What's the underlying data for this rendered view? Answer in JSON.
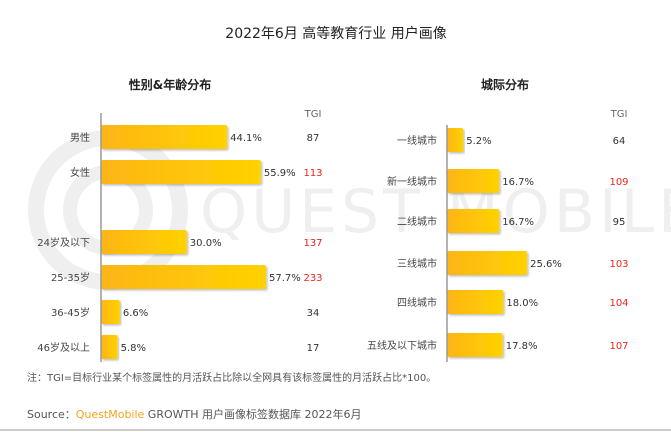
{
  "title": "2022年6月 高等教育行业 用户画像",
  "note": "注：TGI=目标行业某个标签属性的月活跃占比除以全网具有该标签属性的月活跃占比*100。",
  "source": {
    "prefix": "Source：",
    "brand": "QuestMobile",
    "rest": " GROWTH 用户画像标签数据库 2022年6月"
  },
  "watermark": "QUEST MOBILE",
  "colors": {
    "bar_start": "#FDB515",
    "bar_end": "#FFD200",
    "tgi_high": "#E8251F",
    "tgi_normal": "#333333",
    "brand": "#F7A21B"
  },
  "chart_data": [
    {
      "type": "bar",
      "orientation": "horizontal",
      "title": "性别&年龄分布",
      "tgi_header": "TGI",
      "groups": [
        [
          "男性",
          "女性"
        ],
        [
          "24岁及以下",
          "25-35岁",
          "36-45岁",
          "46岁及以上"
        ]
      ],
      "categories": [
        "男性",
        "女性",
        "24岁及以下",
        "25-35岁",
        "36-45岁",
        "46岁及以上"
      ],
      "values": [
        44.1,
        55.9,
        30.0,
        57.7,
        6.6,
        5.8
      ],
      "labels": [
        "44.1%",
        "55.9%",
        "30.0%",
        "57.7%",
        "6.6%",
        "5.8%"
      ],
      "tgi": [
        87,
        113,
        137,
        233,
        34,
        17
      ]
    },
    {
      "type": "bar",
      "orientation": "horizontal",
      "title": "城际分布",
      "tgi_header": "TGI",
      "categories": [
        "一线城市",
        "新一线城市",
        "二线城市",
        "三线城市",
        "四线城市",
        "五线及以下城市"
      ],
      "values": [
        5.2,
        16.7,
        16.7,
        25.6,
        18.0,
        17.8
      ],
      "labels": [
        "5.2%",
        "16.7%",
        "16.7%",
        "25.6%",
        "18.0%",
        "17.8%"
      ],
      "tgi": [
        64,
        109,
        95,
        103,
        104,
        107
      ]
    }
  ]
}
